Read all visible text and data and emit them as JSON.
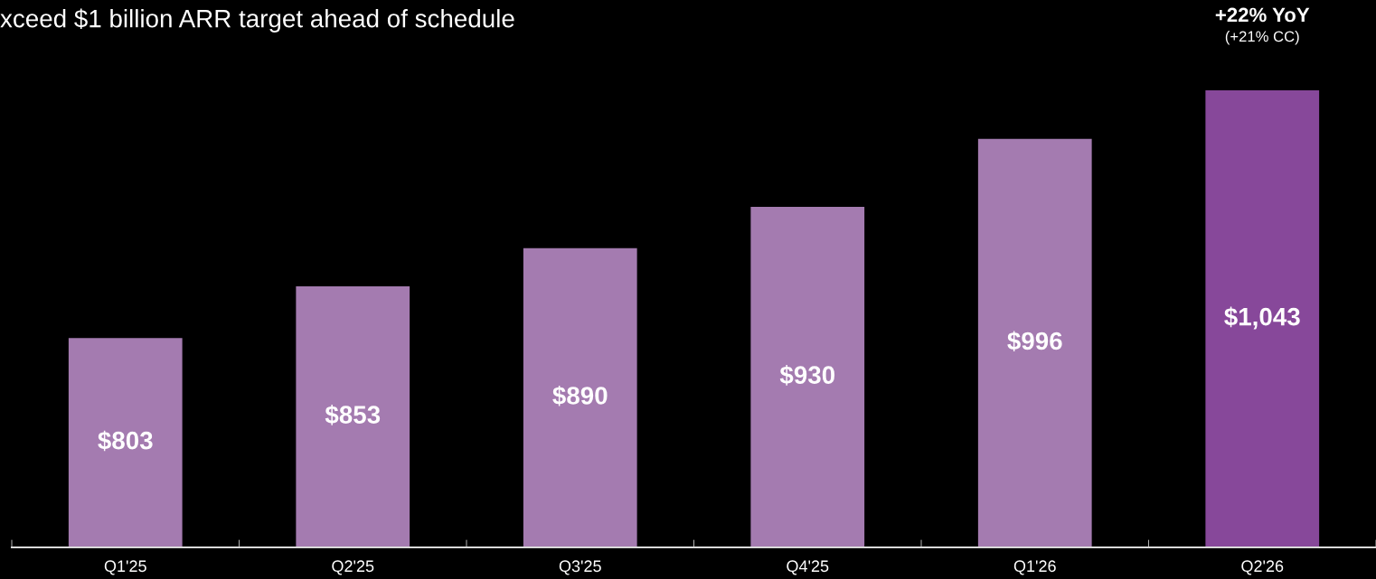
{
  "chart_data": {
    "type": "bar",
    "title": "xceed $1 billion ARR target ahead of schedule",
    "categories": [
      "Q1'25",
      "Q2'25",
      "Q3'25",
      "Q4'25",
      "Q1'26",
      "Q2'26"
    ],
    "values": [
      803,
      853,
      890,
      930,
      996,
      1043
    ],
    "colors": [
      "#a47bb0",
      "#a47bb0",
      "#a47bb0",
      "#a47bb0",
      "#a47bb0",
      "#87489a"
    ],
    "value_labels": [
      "$803",
      "$853",
      "$890",
      "$930",
      "$996",
      "$1,043"
    ],
    "annotations": [
      "+22% YoY",
      "(+21% CC)"
    ],
    "ylim": [
      600,
      1043
    ],
    "grid": false,
    "legend": false,
    "tick_labels": "x"
  }
}
